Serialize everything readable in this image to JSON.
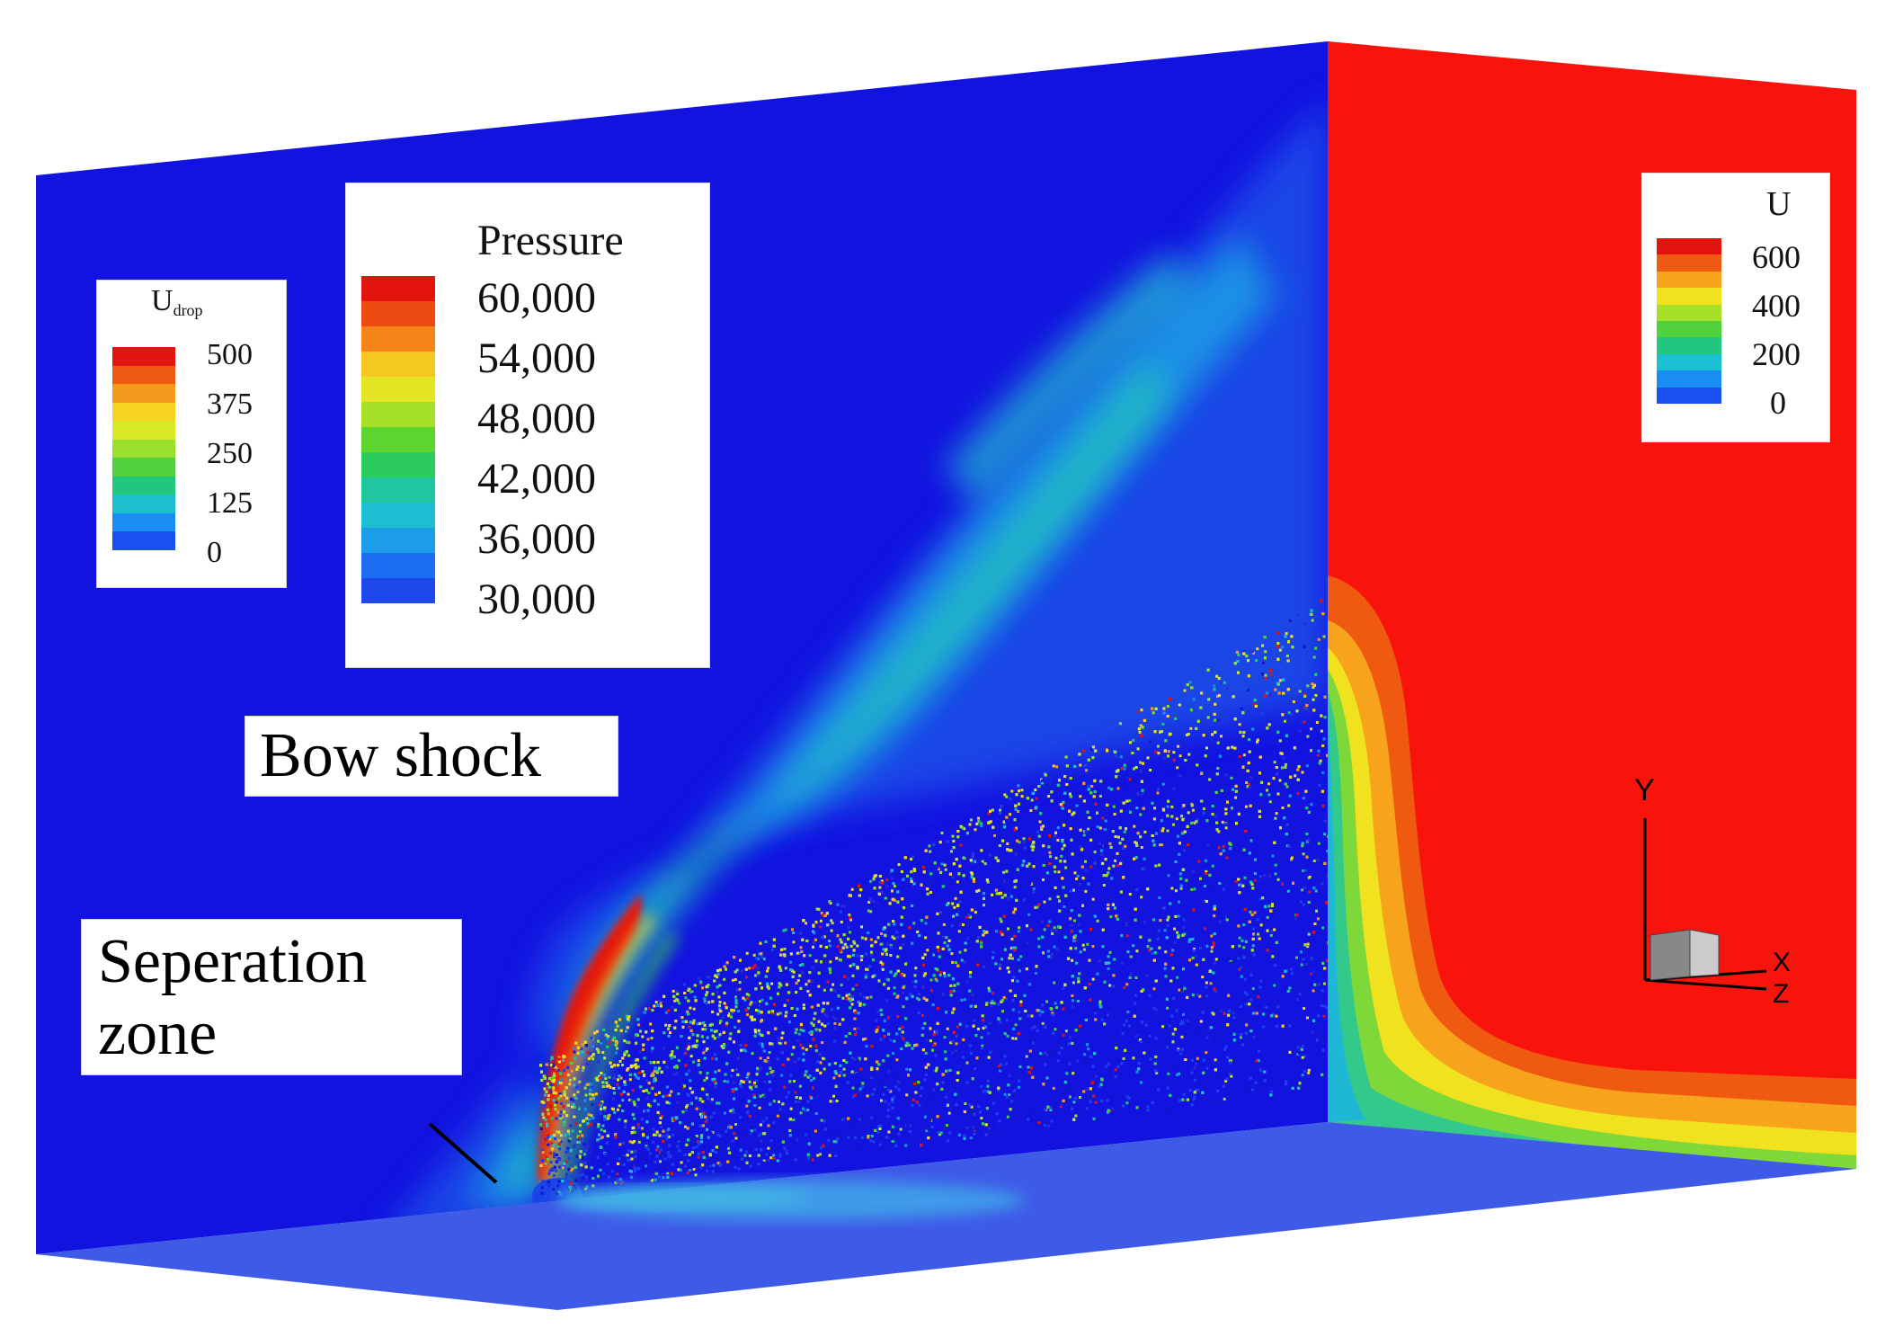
{
  "legends": {
    "udrop": {
      "title_main": "U",
      "title_sub": "drop",
      "ticks": [
        "500",
        "375",
        "250",
        "125",
        "0"
      ],
      "colors": [
        "#e0150f",
        "#ee5a12",
        "#f59a1c",
        "#f5d31f",
        "#d9ea24",
        "#9be02d",
        "#4fd23e",
        "#22c77f",
        "#1bbfd0",
        "#1a8ef0",
        "#1c4ff0"
      ]
    },
    "pressure": {
      "title": "Pressure",
      "ticks": [
        "60,000",
        "54,000",
        "48,000",
        "42,000",
        "36,000",
        "30,000"
      ],
      "colors": [
        "#e3140e",
        "#ee4b12",
        "#f7861a",
        "#f5c81f",
        "#e3e723",
        "#a6e028",
        "#5dd52f",
        "#2ccb5e",
        "#1fc6a0",
        "#1ebfd3",
        "#1b9de8",
        "#1c6ef0",
        "#1f48ea"
      ]
    },
    "u": {
      "title": "U",
      "ticks": [
        "600",
        "400",
        "200",
        "0"
      ],
      "colors": [
        "#e3140e",
        "#ee5a12",
        "#f7a31c",
        "#f0e21f",
        "#a6e028",
        "#4fd23e",
        "#22c77f",
        "#1bc0d3",
        "#1a8ef0",
        "#1c4ff0"
      ]
    }
  },
  "annotations": {
    "bow_shock": "Bow shock",
    "separation_line1": "Seperation",
    "separation_line2": "zone"
  },
  "axes": {
    "y": "Y",
    "x": "X",
    "z": "Z"
  },
  "colors": {
    "back_wall": "#1313e0",
    "right_wall": "#f8130c",
    "floor": "#3e5be8"
  }
}
